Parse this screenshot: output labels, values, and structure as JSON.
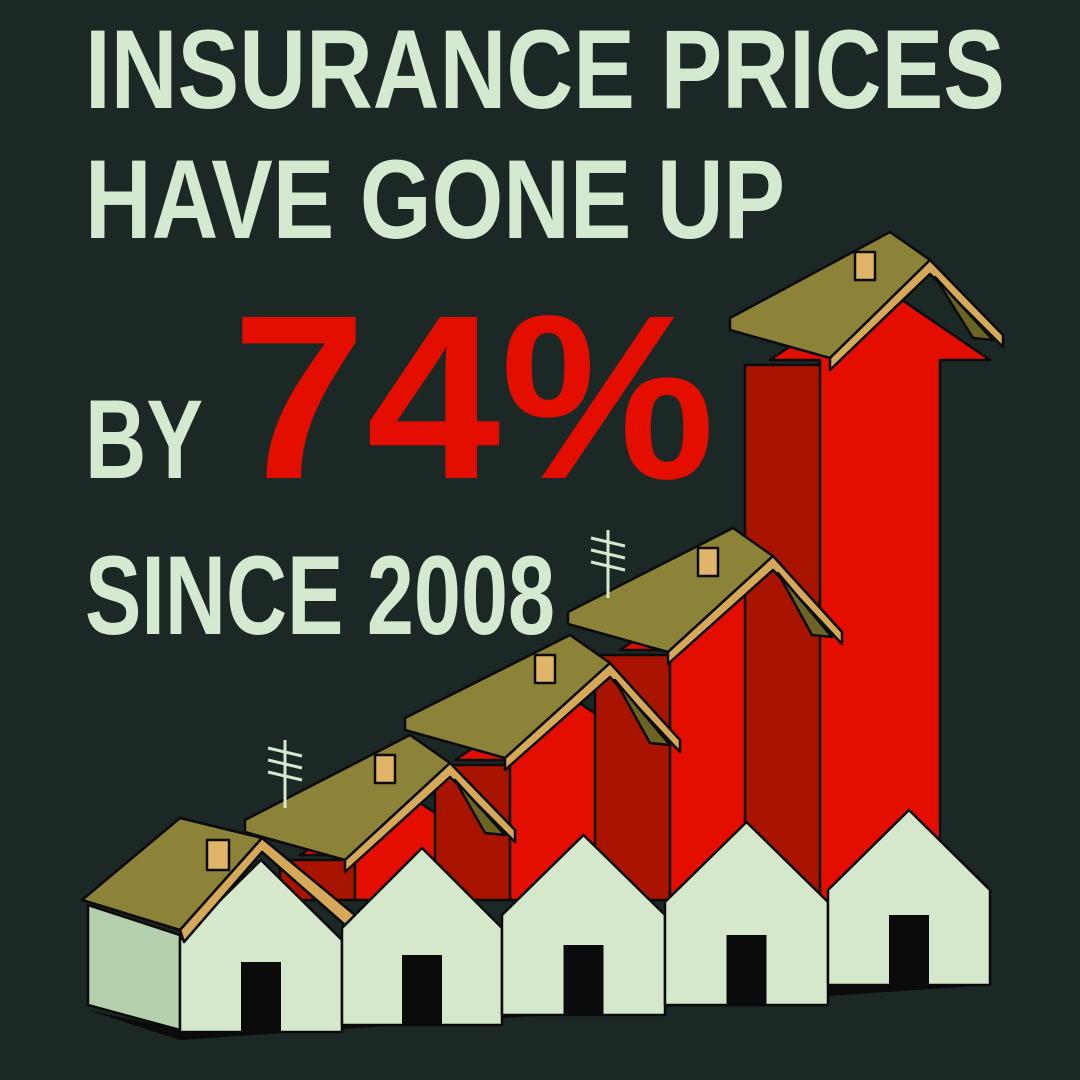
{
  "headline": {
    "line1": "INSURANCE PRICES",
    "line2": "HAVE GONE UP",
    "by": "BY",
    "percent": "74%",
    "line4": "SINCE 2008"
  },
  "colors": {
    "background": "#1c2825",
    "text": "#d4e9cf",
    "accent_red": "#e30d00",
    "dark_red": "#a81400",
    "roof": "#8c8238",
    "house_wall": "#d5e8cc"
  },
  "illustration": {
    "subject": "row of houses with rising red arrows",
    "house_count": 5
  }
}
